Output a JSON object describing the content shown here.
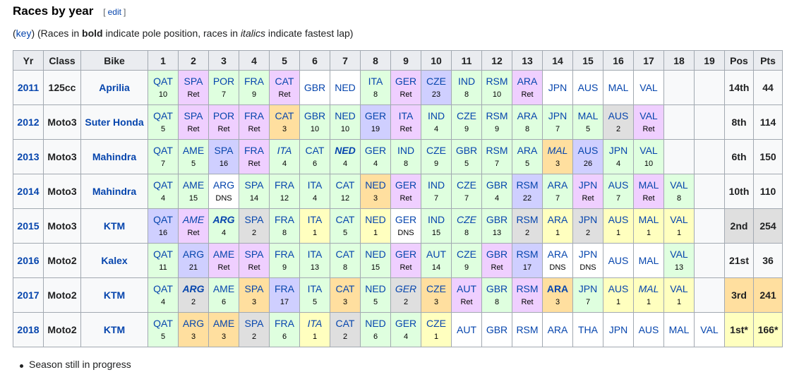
{
  "section": {
    "title": "Races by year",
    "edit": {
      "open": "[",
      "label": "edit",
      "close": "]"
    }
  },
  "note": [
    {
      "text": "("
    },
    {
      "text": "key",
      "style": "link"
    },
    {
      "text": ") (Races in "
    },
    {
      "text": "bold",
      "style": "bold"
    },
    {
      "text": " indicate pole position, races in "
    },
    {
      "text": "italics",
      "style": "italic"
    },
    {
      "text": " indicate fastest lap)"
    }
  ],
  "table": {
    "columns": [
      "Yr",
      "Class",
      "Bike",
      1,
      2,
      3,
      4,
      5,
      6,
      7,
      8,
      9,
      10,
      11,
      12,
      13,
      14,
      15,
      16,
      17,
      18,
      19,
      "Pos",
      "Pts"
    ],
    "rows": [
      {
        "year": 2011,
        "class": "125cc",
        "bike": "Aprilia",
        "pos": "14th",
        "pts": 44,
        "races": [
          {
            "race": "QAT",
            "result": 10,
            "color": "#dfffdf"
          },
          {
            "race": "SPA",
            "result": "Ret",
            "color": "#efcfff"
          },
          {
            "race": "POR",
            "result": 7,
            "color": "#dfffdf"
          },
          {
            "race": "FRA",
            "result": 9,
            "color": "#dfffdf"
          },
          {
            "race": "CAT",
            "result": "Ret",
            "color": "#efcfff"
          },
          {
            "race": "GBR",
            "color": "#ffffff"
          },
          {
            "race": "NED",
            "color": "#ffffff"
          },
          {
            "race": "ITA",
            "result": 8,
            "color": "#dfffdf"
          },
          {
            "race": "GER",
            "result": "Ret",
            "color": "#efcfff"
          },
          {
            "race": "CZE",
            "result": 23,
            "color": "#cfcfff"
          },
          {
            "race": "IND",
            "result": 8,
            "color": "#dfffdf"
          },
          {
            "race": "RSM",
            "result": 10,
            "color": "#dfffdf"
          },
          {
            "race": "ARA",
            "result": "Ret",
            "color": "#efcfff"
          },
          {
            "race": "JPN",
            "color": "#ffffff"
          },
          {
            "race": "AUS",
            "color": "#ffffff"
          },
          {
            "race": "MAL",
            "color": "#ffffff"
          },
          {
            "race": "VAL",
            "color": "#ffffff"
          },
          null,
          null
        ]
      },
      {
        "year": 2012,
        "class": "Moto3",
        "bike": "Suter Honda",
        "pos": "8th",
        "pts": 114,
        "races": [
          {
            "race": "QAT",
            "result": 5,
            "color": "#dfffdf"
          },
          {
            "race": "SPA",
            "result": "Ret",
            "color": "#efcfff"
          },
          {
            "race": "POR",
            "result": "Ret",
            "color": "#efcfff"
          },
          {
            "race": "FRA",
            "result": "Ret",
            "color": "#efcfff"
          },
          {
            "race": "CAT",
            "result": 3,
            "color": "#ffdf9f"
          },
          {
            "race": "GBR",
            "result": 10,
            "color": "#dfffdf"
          },
          {
            "race": "NED",
            "result": 10,
            "color": "#dfffdf"
          },
          {
            "race": "GER",
            "result": 19,
            "color": "#cfcfff"
          },
          {
            "race": "ITA",
            "result": "Ret",
            "color": "#efcfff"
          },
          {
            "race": "IND",
            "result": 4,
            "color": "#dfffdf"
          },
          {
            "race": "CZE",
            "result": 9,
            "color": "#dfffdf"
          },
          {
            "race": "RSM",
            "result": 9,
            "color": "#dfffdf"
          },
          {
            "race": "ARA",
            "result": 8,
            "color": "#dfffdf"
          },
          {
            "race": "JPN",
            "result": 7,
            "color": "#dfffdf"
          },
          {
            "race": "MAL",
            "result": 5,
            "color": "#dfffdf"
          },
          {
            "race": "AUS",
            "result": 2,
            "color": "#dfdfdf"
          },
          {
            "race": "VAL",
            "result": "Ret",
            "color": "#efcfff"
          },
          null,
          null
        ]
      },
      {
        "year": 2013,
        "class": "Moto3",
        "bike": "Mahindra",
        "pos": "6th",
        "pts": 150,
        "races": [
          {
            "race": "QAT",
            "result": 7,
            "color": "#dfffdf"
          },
          {
            "race": "AME",
            "result": 5,
            "color": "#dfffdf"
          },
          {
            "race": "SPA",
            "result": 16,
            "color": "#cfcfff"
          },
          {
            "race": "FRA",
            "result": "Ret",
            "color": "#efcfff"
          },
          {
            "race": "ITA",
            "result": 4,
            "color": "#dfffdf",
            "italic": true
          },
          {
            "race": "CAT",
            "result": 6,
            "color": "#dfffdf"
          },
          {
            "race": "NED",
            "result": 4,
            "color": "#dfffdf",
            "bold": true,
            "italic": true
          },
          {
            "race": "GER",
            "result": 4,
            "color": "#dfffdf"
          },
          {
            "race": "IND",
            "result": 8,
            "color": "#dfffdf"
          },
          {
            "race": "CZE",
            "result": 9,
            "color": "#dfffdf"
          },
          {
            "race": "GBR",
            "result": 5,
            "color": "#dfffdf"
          },
          {
            "race": "RSM",
            "result": 7,
            "color": "#dfffdf"
          },
          {
            "race": "ARA",
            "result": 5,
            "color": "#dfffdf"
          },
          {
            "race": "MAL",
            "result": 3,
            "color": "#ffdf9f",
            "italic": true
          },
          {
            "race": "AUS",
            "result": 26,
            "color": "#cfcfff"
          },
          {
            "race": "JPN",
            "result": 4,
            "color": "#dfffdf"
          },
          {
            "race": "VAL",
            "result": 10,
            "color": "#dfffdf"
          },
          null,
          null
        ]
      },
      {
        "year": 2014,
        "class": "Moto3",
        "bike": "Mahindra",
        "pos": "10th",
        "pts": 110,
        "races": [
          {
            "race": "QAT",
            "result": 4,
            "color": "#dfffdf"
          },
          {
            "race": "AME",
            "result": 15,
            "color": "#dfffdf"
          },
          {
            "race": "ARG",
            "result": "DNS",
            "color": "#ffffff"
          },
          {
            "race": "SPA",
            "result": 14,
            "color": "#dfffdf"
          },
          {
            "race": "FRA",
            "result": 12,
            "color": "#dfffdf"
          },
          {
            "race": "ITA",
            "result": 4,
            "color": "#dfffdf"
          },
          {
            "race": "CAT",
            "result": 12,
            "color": "#dfffdf"
          },
          {
            "race": "NED",
            "result": 3,
            "color": "#ffdf9f"
          },
          {
            "race": "GER",
            "result": "Ret",
            "color": "#efcfff"
          },
          {
            "race": "IND",
            "result": 7,
            "color": "#dfffdf"
          },
          {
            "race": "CZE",
            "result": 7,
            "color": "#dfffdf"
          },
          {
            "race": "GBR",
            "result": 4,
            "color": "#dfffdf"
          },
          {
            "race": "RSM",
            "result": 22,
            "color": "#cfcfff"
          },
          {
            "race": "ARA",
            "result": 7,
            "color": "#dfffdf"
          },
          {
            "race": "JPN",
            "result": "Ret",
            "color": "#efcfff"
          },
          {
            "race": "AUS",
            "result": 7,
            "color": "#dfffdf"
          },
          {
            "race": "MAL",
            "result": "Ret",
            "color": "#efcfff"
          },
          {
            "race": "VAL",
            "result": 8,
            "color": "#dfffdf"
          },
          null
        ]
      },
      {
        "year": 2015,
        "class": "Moto3",
        "bike": "KTM",
        "pos": "2nd",
        "pts": 254,
        "pos_color": "#dfdfdf",
        "races": [
          {
            "race": "QAT",
            "result": 16,
            "color": "#cfcfff"
          },
          {
            "race": "AME",
            "result": "Ret",
            "color": "#efcfff",
            "italic": true
          },
          {
            "race": "ARG",
            "result": 4,
            "color": "#dfffdf",
            "bold": true,
            "italic": true
          },
          {
            "race": "SPA",
            "result": 2,
            "color": "#dfdfdf"
          },
          {
            "race": "FRA",
            "result": 8,
            "color": "#dfffdf"
          },
          {
            "race": "ITA",
            "result": 1,
            "color": "#ffffbf"
          },
          {
            "race": "CAT",
            "result": 5,
            "color": "#dfffdf"
          },
          {
            "race": "NED",
            "result": 1,
            "color": "#ffffbf"
          },
          {
            "race": "GER",
            "result": "DNS",
            "color": "#ffffff"
          },
          {
            "race": "IND",
            "result": 15,
            "color": "#dfffdf"
          },
          {
            "race": "CZE",
            "result": 8,
            "color": "#dfffdf",
            "italic": true
          },
          {
            "race": "GBR",
            "result": 13,
            "color": "#dfffdf"
          },
          {
            "race": "RSM",
            "result": 2,
            "color": "#dfdfdf"
          },
          {
            "race": "ARA",
            "result": 1,
            "color": "#ffffbf"
          },
          {
            "race": "JPN",
            "result": 2,
            "color": "#dfdfdf"
          },
          {
            "race": "AUS",
            "result": 1,
            "color": "#ffffbf"
          },
          {
            "race": "MAL",
            "result": 1,
            "color": "#ffffbf"
          },
          {
            "race": "VAL",
            "result": 1,
            "color": "#ffffbf"
          },
          null
        ]
      },
      {
        "year": 2016,
        "class": "Moto2",
        "bike": "Kalex",
        "pos": "21st",
        "pts": 36,
        "races": [
          {
            "race": "QAT",
            "result": 11,
            "color": "#dfffdf"
          },
          {
            "race": "ARG",
            "result": 21,
            "color": "#cfcfff"
          },
          {
            "race": "AME",
            "result": "Ret",
            "color": "#efcfff"
          },
          {
            "race": "SPA",
            "result": "Ret",
            "color": "#efcfff"
          },
          {
            "race": "FRA",
            "result": 9,
            "color": "#dfffdf"
          },
          {
            "race": "ITA",
            "result": 13,
            "color": "#dfffdf"
          },
          {
            "race": "CAT",
            "result": 8,
            "color": "#dfffdf"
          },
          {
            "race": "NED",
            "result": 15,
            "color": "#dfffdf"
          },
          {
            "race": "GER",
            "result": "Ret",
            "color": "#efcfff"
          },
          {
            "race": "AUT",
            "result": 14,
            "color": "#dfffdf"
          },
          {
            "race": "CZE",
            "result": 9,
            "color": "#dfffdf"
          },
          {
            "race": "GBR",
            "result": "Ret",
            "color": "#efcfff"
          },
          {
            "race": "RSM",
            "result": 17,
            "color": "#cfcfff"
          },
          {
            "race": "ARA",
            "result": "DNS",
            "color": "#ffffff"
          },
          {
            "race": "JPN",
            "result": "DNS",
            "color": "#ffffff"
          },
          {
            "race": "AUS",
            "color": "#ffffff"
          },
          {
            "race": "MAL",
            "color": "#ffffff"
          },
          {
            "race": "VAL",
            "result": 13,
            "color": "#dfffdf"
          },
          null
        ]
      },
      {
        "year": 2017,
        "class": "Moto2",
        "bike": "KTM",
        "pos": "3rd",
        "pts": 241,
        "pos_color": "#ffdf9f",
        "races": [
          {
            "race": "QAT",
            "result": 4,
            "color": "#dfffdf"
          },
          {
            "race": "ARG",
            "result": 2,
            "color": "#dfdfdf",
            "bold": true,
            "italic": true
          },
          {
            "race": "AME",
            "result": 6,
            "color": "#dfffdf"
          },
          {
            "race": "SPA",
            "result": 3,
            "color": "#ffdf9f"
          },
          {
            "race": "FRA",
            "result": 17,
            "color": "#cfcfff"
          },
          {
            "race": "ITA",
            "result": 5,
            "color": "#dfffdf"
          },
          {
            "race": "CAT",
            "result": 3,
            "color": "#ffdf9f"
          },
          {
            "race": "NED",
            "result": 5,
            "color": "#dfffdf"
          },
          {
            "race": "GER",
            "result": 2,
            "color": "#dfdfdf",
            "italic": true
          },
          {
            "race": "CZE",
            "result": 3,
            "color": "#ffdf9f"
          },
          {
            "race": "AUT",
            "result": "Ret",
            "color": "#efcfff"
          },
          {
            "race": "GBR",
            "result": 8,
            "color": "#dfffdf"
          },
          {
            "race": "RSM",
            "result": "Ret",
            "color": "#efcfff"
          },
          {
            "race": "ARA",
            "result": 3,
            "color": "#ffdf9f",
            "bold": true
          },
          {
            "race": "JPN",
            "result": 7,
            "color": "#dfffdf"
          },
          {
            "race": "AUS",
            "result": 1,
            "color": "#ffffbf"
          },
          {
            "race": "MAL",
            "result": 1,
            "color": "#ffffbf",
            "italic": true
          },
          {
            "race": "VAL",
            "result": 1,
            "color": "#ffffbf"
          },
          null
        ]
      },
      {
        "year": 2018,
        "class": "Moto2",
        "bike": "KTM",
        "pos": "1st*",
        "pts": "166*",
        "pos_color": "#ffffbf",
        "races": [
          {
            "race": "QAT",
            "result": 5,
            "color": "#dfffdf"
          },
          {
            "race": "ARG",
            "result": 3,
            "color": "#ffdf9f"
          },
          {
            "race": "AME",
            "result": 3,
            "color": "#ffdf9f"
          },
          {
            "race": "SPA",
            "result": 2,
            "color": "#dfdfdf"
          },
          {
            "race": "FRA",
            "result": 6,
            "color": "#dfffdf"
          },
          {
            "race": "ITA",
            "result": 1,
            "color": "#ffffbf",
            "italic": true
          },
          {
            "race": "CAT",
            "result": 2,
            "color": "#dfdfdf"
          },
          {
            "race": "NED",
            "result": 6,
            "color": "#dfffdf"
          },
          {
            "race": "GER",
            "result": 4,
            "color": "#dfffdf"
          },
          {
            "race": "CZE",
            "result": 1,
            "color": "#ffffbf"
          },
          {
            "race": "AUT",
            "color": "#ffffff"
          },
          {
            "race": "GBR",
            "color": "#ffffff"
          },
          {
            "race": "RSM",
            "color": "#ffffff"
          },
          {
            "race": "ARA",
            "color": "#ffffff"
          },
          {
            "race": "THA",
            "color": "#ffffff"
          },
          {
            "race": "JPN",
            "color": "#ffffff"
          },
          {
            "race": "AUS",
            "color": "#ffffff"
          },
          {
            "race": "MAL",
            "color": "#ffffff"
          },
          {
            "race": "VAL",
            "color": "#ffffff"
          }
        ]
      }
    ]
  },
  "footnotes": [
    "Season still in progress"
  ]
}
